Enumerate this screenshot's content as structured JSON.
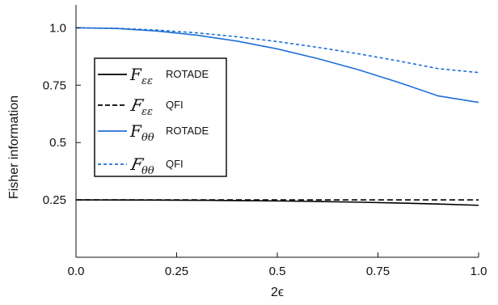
{
  "chart_data": {
    "type": "line",
    "xlabel": "2ϵ",
    "ylabel": "Fisher information",
    "xlim": [
      0,
      1
    ],
    "ylim": [
      0,
      1.1
    ],
    "x_ticks": [
      0.0,
      0.25,
      0.5,
      0.75,
      1.0
    ],
    "x_tick_labels": [
      "0.0",
      "0.25",
      "0.5",
      "0.75",
      "1.0"
    ],
    "y_ticks": [
      0.25,
      0.5,
      0.75,
      1.0
    ],
    "y_tick_labels": [
      "0.25",
      "0.5",
      "0.75",
      "1.0"
    ],
    "grid": false,
    "legend_position": "left-middle",
    "x": [
      0.0,
      0.1,
      0.2,
      0.3,
      0.4,
      0.5,
      0.6,
      0.7,
      0.8,
      0.9,
      1.0
    ],
    "series": [
      {
        "name_main": "F",
        "name_sub": "εε",
        "tag": "ROTADE",
        "color": "#000000",
        "style": "solid",
        "values": [
          0.25,
          0.2498,
          0.2493,
          0.2485,
          0.2472,
          0.2455,
          0.2432,
          0.2402,
          0.2365,
          0.232,
          0.2265
        ]
      },
      {
        "name_main": "F",
        "name_sub": "εε",
        "tag": "QFI",
        "script": true,
        "color": "#000000",
        "style": "dashed",
        "values": [
          0.25,
          0.25,
          0.25,
          0.25,
          0.25,
          0.25,
          0.25,
          0.25,
          0.25,
          0.25,
          0.25
        ]
      },
      {
        "name_main": "F",
        "name_sub": "θθ",
        "tag": "ROTADE",
        "color": "#1f6fd6",
        "style": "solid",
        "values": [
          1.0,
          0.997,
          0.986,
          0.968,
          0.942,
          0.908,
          0.866,
          0.818,
          0.763,
          0.703,
          0.675
        ]
      },
      {
        "name_main": "F",
        "name_sub": "θθ",
        "tag": "QFI",
        "script": true,
        "color": "#1f6fd6",
        "style": "dashed",
        "values": [
          1.0,
          0.998,
          0.99,
          0.978,
          0.961,
          0.94,
          0.915,
          0.887,
          0.856,
          0.822,
          0.805
        ]
      }
    ]
  }
}
